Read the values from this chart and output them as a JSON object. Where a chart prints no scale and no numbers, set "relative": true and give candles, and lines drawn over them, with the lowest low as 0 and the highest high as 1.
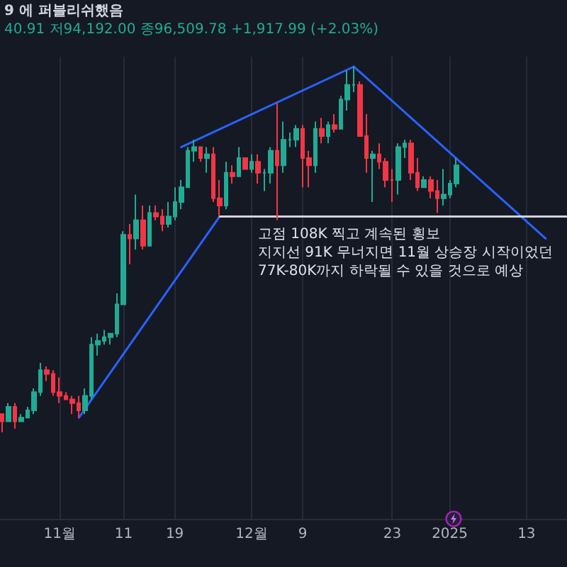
{
  "chart_data": {
    "type": "candlestick",
    "title": "9 에 퍼블리쉬했음",
    "subtitle": "40.91 저94,192.00 종96,509.78 +1,917.99 (+2.03%)",
    "relative": true,
    "xlim": [
      "2024-10-22T16:00",
      "2025-01-19T08:00"
    ],
    "xticks": [
      {
        "value": "2024-11-01",
        "label": "11월"
      },
      {
        "value": "2024-11-11",
        "label": "11"
      },
      {
        "value": "2024-11-19",
        "label": "19"
      },
      {
        "value": "2024-12-01",
        "label": "12월"
      },
      {
        "value": "2024-12-09",
        "label": "9"
      },
      {
        "value": "2024-12-23",
        "label": "23"
      },
      {
        "value": "2025-01-01",
        "label": "2025"
      },
      {
        "value": "2025-01-13",
        "label": "13"
      }
    ],
    "grid": "x",
    "tick_labels": "x",
    "marker": "none",
    "series": [
      {
        "x": [
          "2024-10-23",
          "2024-10-24",
          "2024-10-25",
          "2024-10-26",
          "2024-10-27",
          "2024-10-28",
          "2024-10-29",
          "2024-10-30",
          "2024-10-31",
          "2024-11-01",
          "2024-11-02",
          "2024-11-03",
          "2024-11-04",
          "2024-11-05",
          "2024-11-06",
          "2024-11-07",
          "2024-11-08",
          "2024-11-09",
          "2024-11-10",
          "2024-11-11",
          "2024-11-12",
          "2024-11-13",
          "2024-11-14",
          "2024-11-15",
          "2024-11-16",
          "2024-11-17",
          "2024-11-18",
          "2024-11-19",
          "2024-11-20",
          "2024-11-21",
          "2024-11-22",
          "2024-11-23",
          "2024-11-24",
          "2024-11-25",
          "2024-11-26",
          "2024-11-27",
          "2024-11-28",
          "2024-11-29",
          "2024-11-30",
          "2024-12-01",
          "2024-12-02",
          "2024-12-03",
          "2024-12-04",
          "2024-12-05",
          "2024-12-06",
          "2024-12-07",
          "2024-12-08",
          "2024-12-09",
          "2024-12-10",
          "2024-12-11",
          "2024-12-12",
          "2024-12-13",
          "2024-12-14",
          "2024-12-15",
          "2024-12-16",
          "2024-12-17",
          "2024-12-18",
          "2024-12-19",
          "2024-12-20",
          "2024-12-21",
          "2024-12-22",
          "2024-12-23",
          "2024-12-24",
          "2024-12-25",
          "2024-12-26",
          "2024-12-27",
          "2024-12-28",
          "2024-12-29",
          "2024-12-30",
          "2024-12-31",
          "2025-01-01",
          "2025-01-02"
        ],
        "ohlc": [
          [
            0.05,
            0.05,
            0,
            0.03
          ],
          [
            0.03,
            0.08,
            0.03,
            0.07
          ],
          [
            0.07,
            0.08,
            0.01,
            0.03
          ],
          [
            0.03,
            0.05,
            0.03,
            0.04
          ],
          [
            0.04,
            0.07,
            0.04,
            0.06
          ],
          [
            0.06,
            0.12,
            0.05,
            0.11
          ],
          [
            0.11,
            0.19,
            0.1,
            0.17
          ],
          [
            0.17,
            0.18,
            0.14,
            0.16
          ],
          [
            0.16,
            0.17,
            0.1,
            0.11
          ],
          [
            0.11,
            0.15,
            0.08,
            0.1
          ],
          [
            0.1,
            0.11,
            0.09,
            0.09
          ],
          [
            0.09,
            0.1,
            0.05,
            0.08
          ],
          [
            0.08,
            0.1,
            0.04,
            0.06
          ],
          [
            0.06,
            0.12,
            0.05,
            0.1
          ],
          [
            0.1,
            0.26,
            0.09,
            0.24
          ],
          [
            0.24,
            0.27,
            0.21,
            0.25
          ],
          [
            0.25,
            0.28,
            0.24,
            0.26
          ],
          [
            0.26,
            0.27,
            0.24,
            0.27
          ],
          [
            0.27,
            0.38,
            0.26,
            0.35
          ],
          [
            0.35,
            0.55,
            0.35,
            0.54
          ],
          [
            0.54,
            0.57,
            0.46,
            0.53
          ],
          [
            0.53,
            0.65,
            0.5,
            0.58
          ],
          [
            0.58,
            0.62,
            0.5,
            0.51
          ],
          [
            0.51,
            0.62,
            0.51,
            0.6
          ],
          [
            0.6,
            0.62,
            0.58,
            0.59
          ],
          [
            0.59,
            0.61,
            0.55,
            0.57
          ],
          [
            0.57,
            0.63,
            0.56,
            0.59
          ],
          [
            0.59,
            0.67,
            0.58,
            0.63
          ],
          [
            0.63,
            0.69,
            0.61,
            0.67
          ],
          [
            0.67,
            0.78,
            0.67,
            0.77
          ],
          [
            0.77,
            0.8,
            0.74,
            0.78
          ],
          [
            0.78,
            0.78,
            0.74,
            0.75
          ],
          [
            0.75,
            0.78,
            0.71,
            0.76
          ],
          [
            0.76,
            0.78,
            0.63,
            0.64
          ],
          [
            0.64,
            0.69,
            0.59,
            0.62
          ],
          [
            0.62,
            0.74,
            0.61,
            0.71
          ],
          [
            0.71,
            0.73,
            0.68,
            0.7
          ],
          [
            0.7,
            0.78,
            0.7,
            0.75
          ],
          [
            0.75,
            0.75,
            0.72,
            0.72
          ],
          [
            0.72,
            0.76,
            0.71,
            0.74
          ],
          [
            0.74,
            0.76,
            0.68,
            0.71
          ],
          [
            0.71,
            0.72,
            0.66,
            0.71
          ],
          [
            0.71,
            0.78,
            0.68,
            0.77
          ],
          [
            0.77,
            0.9,
            0.58,
            0.73
          ],
          [
            0.73,
            0.85,
            0.71,
            0.8
          ],
          [
            0.8,
            0.82,
            0.78,
            0.8
          ],
          [
            0.8,
            0.84,
            0.78,
            0.83
          ],
          [
            0.83,
            0.84,
            0.67,
            0.75
          ],
          [
            0.75,
            0.77,
            0.67,
            0.73
          ],
          [
            0.73,
            0.85,
            0.71,
            0.83
          ],
          [
            0.83,
            0.86,
            0.79,
            0.81
          ],
          [
            0.81,
            0.85,
            0.79,
            0.84
          ],
          [
            0.84,
            0.87,
            0.82,
            0.83
          ],
          [
            0.83,
            0.92,
            0.83,
            0.91
          ],
          [
            0.91,
            0.99,
            0.88,
            0.95
          ],
          [
            0.95,
            1.0,
            0.93,
            0.95
          ],
          [
            0.95,
            0.96,
            0.81,
            0.81
          ],
          [
            0.81,
            0.87,
            0.71,
            0.75
          ],
          [
            0.75,
            0.77,
            0.63,
            0.76
          ],
          [
            0.76,
            0.79,
            0.72,
            0.74
          ],
          [
            0.74,
            0.75,
            0.67,
            0.69
          ],
          [
            0.69,
            0.72,
            0.63,
            0.69
          ],
          [
            0.69,
            0.79,
            0.65,
            0.78
          ],
          [
            0.78,
            0.8,
            0.75,
            0.79
          ],
          [
            0.79,
            0.8,
            0.69,
            0.71
          ],
          [
            0.71,
            0.75,
            0.66,
            0.67
          ],
          [
            0.67,
            0.7,
            0.67,
            0.69
          ],
          [
            0.69,
            0.7,
            0.64,
            0.66
          ],
          [
            0.66,
            0.69,
            0.6,
            0.64
          ],
          [
            0.64,
            0.72,
            0.62,
            0.65
          ],
          [
            0.65,
            0.69,
            0.64,
            0.68
          ],
          [
            0.68,
            0.75,
            0.67,
            0.73
          ]
        ],
        "colors": [
          "#f23645",
          "#22ab94",
          "#f23645",
          "#22ab94",
          "#22ab94",
          "#22ab94",
          "#22ab94",
          "#f23645",
          "#f23645",
          "#f23645",
          "#f23645",
          "#f23645",
          "#f23645",
          "#22ab94",
          "#22ab94",
          "#22ab94",
          "#22ab94",
          "#22ab94",
          "#22ab94",
          "#22ab94",
          "#f23645",
          "#22ab94",
          "#f23645",
          "#22ab94",
          "#f23645",
          "#f23645",
          "#22ab94",
          "#22ab94",
          "#22ab94",
          "#22ab94",
          "#22ab94",
          "#f23645",
          "#22ab94",
          "#f23645",
          "#f23645",
          "#22ab94",
          "#f23645",
          "#22ab94",
          "#f23645",
          "#22ab94",
          "#f23645",
          "#22ab94",
          "#22ab94",
          "#f23645",
          "#22ab94",
          "#22ab94",
          "#22ab94",
          "#f23645",
          "#f23645",
          "#22ab94",
          "#f23645",
          "#22ab94",
          "#f23645",
          "#22ab94",
          "#22ab94",
          "#22ab94",
          "#f23645",
          "#f23645",
          "#22ab94",
          "#f23645",
          "#f23645",
          "#f23645",
          "#22ab94",
          "#22ab94",
          "#f23645",
          "#f23645",
          "#22ab94",
          "#f23645",
          "#f23645",
          "#22ab94",
          "#22ab94",
          "#22ab94"
        ]
      },
      {
        "type": "line",
        "x": [
          "2024-11-04",
          "2024-11-26"
        ],
        "values": [
          0.04,
          0.59
        ],
        "color": "#2962ff"
      },
      {
        "type": "line",
        "x": [
          "2024-11-20",
          "2024-12-17"
        ],
        "values": [
          0.78,
          1.0
        ],
        "color": "#2962ff"
      },
      {
        "type": "line",
        "x": [
          "2024-12-17",
          "2025-01-16"
        ],
        "values": [
          1.0,
          0.53
        ],
        "color": "#2962ff"
      },
      {
        "type": "line",
        "x": [
          "2024-11-26",
          "2025-01-19T08:00"
        ],
        "values": [
          0.59,
          0.59
        ],
        "color": "#d1d4dc"
      }
    ],
    "annotations": [
      "고점 108K 찍고 계속된 횡보\n지지선 91K 무너지면 11월 상승장 시작이었던\n77K-80K까지 하락될 수 있을 것으로 예상"
    ]
  }
}
